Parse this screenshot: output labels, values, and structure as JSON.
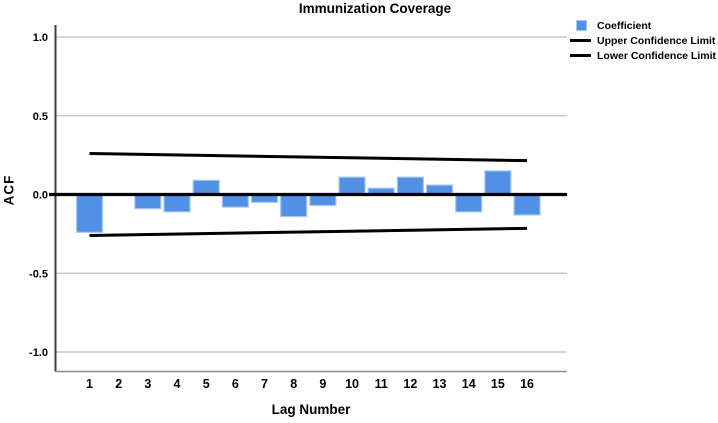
{
  "title": "Immunization Coverage",
  "axes": {
    "x_label": "Lag Number",
    "y_label": "ACF"
  },
  "legend": {
    "position": "top-right",
    "items": [
      {
        "label": "Coefficient",
        "swatch": "square",
        "color": "#5190E4"
      },
      {
        "label": "Upper Confidence Limit",
        "swatch": "line",
        "color": "#000000"
      },
      {
        "label": "Lower Confidence Limit",
        "swatch": "line",
        "color": "#000000"
      }
    ]
  },
  "colors": {
    "bar_fill": "#5190E4",
    "bar_border": "#A8C6F0",
    "confidence_line": "#000000",
    "zero_line": "#000000",
    "gridline": "#CACACA",
    "axis_left": "#404040",
    "axis_bottom": "#8C8C8C",
    "text": "#000000"
  },
  "chart_data": {
    "type": "bar",
    "title": "Immunization Coverage",
    "xlabel": "Lag Number",
    "ylabel": "ACF",
    "categories": [
      1,
      2,
      3,
      4,
      5,
      6,
      7,
      8,
      9,
      10,
      11,
      12,
      13,
      14,
      15,
      16
    ],
    "xtick_labels": [
      "1",
      "2",
      "3",
      "4",
      "5",
      "6",
      "7",
      "8",
      "9",
      "10",
      "11",
      "12",
      "13",
      "14",
      "15",
      "16"
    ],
    "series": [
      {
        "name": "Coefficient",
        "type": "bar",
        "values": [
          -0.24,
          0.0,
          -0.09,
          -0.11,
          0.09,
          -0.08,
          -0.05,
          -0.14,
          -0.07,
          0.11,
          0.04,
          0.11,
          0.06,
          -0.11,
          0.15,
          -0.13
        ]
      },
      {
        "name": "Upper Confidence Limit",
        "type": "line",
        "x": [
          1,
          16
        ],
        "values": [
          0.26,
          0.215
        ]
      },
      {
        "name": "Lower Confidence Limit",
        "type": "line",
        "x": [
          1,
          16
        ],
        "values": [
          -0.26,
          -0.215
        ]
      }
    ],
    "yticks": [
      1.0,
      0.5,
      0.0,
      -0.5,
      -1.0
    ],
    "ytick_labels": [
      "1.0",
      "0.5",
      "0.0",
      "-0.5",
      "-1.0"
    ],
    "ylim": [
      -1.12,
      1.08
    ],
    "grid": "horizontal",
    "legend_position": "top-right"
  }
}
